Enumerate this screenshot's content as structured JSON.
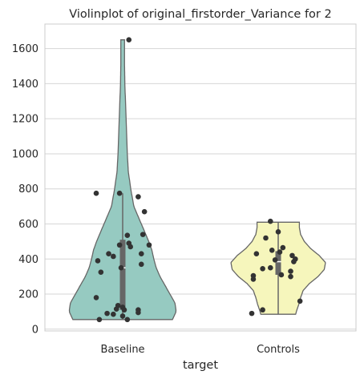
{
  "chart_data": {
    "type": "violin",
    "title": "Violinplot of original_firstorder_Variance for 2",
    "xlabel": "target",
    "ylabel": "",
    "ylim": [
      -10,
      1740
    ],
    "yticks": [
      0,
      200,
      400,
      600,
      800,
      1000,
      1200,
      1400,
      1600
    ],
    "grid": true,
    "categories": [
      "Baseline",
      "Controls"
    ],
    "colors": {
      "Baseline": "#96cac1",
      "Controls": "#f6f6bc",
      "outline": "#666666",
      "points": "#333333",
      "box": "#666666",
      "grid": "#d6d6d6"
    },
    "series": [
      {
        "category": "Baseline",
        "min": 55,
        "max": 1650,
        "q1": 110,
        "median": 350,
        "q3": 510,
        "density": [
          [
            55,
            0.8
          ],
          [
            100,
            0.86
          ],
          [
            150,
            0.84
          ],
          [
            200,
            0.76
          ],
          [
            250,
            0.68
          ],
          [
            300,
            0.6
          ],
          [
            350,
            0.54
          ],
          [
            400,
            0.5
          ],
          [
            450,
            0.47
          ],
          [
            500,
            0.42
          ],
          [
            550,
            0.36
          ],
          [
            600,
            0.3
          ],
          [
            650,
            0.24
          ],
          [
            700,
            0.18
          ],
          [
            800,
            0.13
          ],
          [
            900,
            0.09
          ],
          [
            1000,
            0.075
          ],
          [
            1100,
            0.065
          ],
          [
            1200,
            0.055
          ],
          [
            1300,
            0.045
          ],
          [
            1400,
            0.035
          ],
          [
            1500,
            0.03
          ],
          [
            1600,
            0.03
          ],
          [
            1650,
            0.03
          ]
        ],
        "points": [
          [
            0.04,
            1650
          ],
          [
            -0.17,
            775
          ],
          [
            -0.02,
            775
          ],
          [
            0.1,
            755
          ],
          [
            0.14,
            670
          ],
          [
            0.03,
            535
          ],
          [
            0.13,
            540
          ],
          [
            -0.02,
            480
          ],
          [
            0.04,
            490
          ],
          [
            0.17,
            480
          ],
          [
            0.05,
            470
          ],
          [
            -0.09,
            430
          ],
          [
            0.12,
            430
          ],
          [
            -0.06,
            415
          ],
          [
            -0.16,
            390
          ],
          [
            0.12,
            370
          ],
          [
            -0.01,
            350
          ],
          [
            -0.14,
            325
          ],
          [
            -0.17,
            180
          ],
          [
            -0.03,
            135
          ],
          [
            0.0,
            125
          ],
          [
            -0.04,
            115
          ],
          [
            0.01,
            110
          ],
          [
            0.1,
            110
          ],
          [
            -0.1,
            90
          ],
          [
            0.1,
            95
          ],
          [
            -0.06,
            85
          ],
          [
            0.0,
            75
          ],
          [
            -0.15,
            55
          ],
          [
            0.03,
            55
          ]
        ]
      },
      {
        "category": "Controls",
        "min": 85,
        "max": 610,
        "q1": 310,
        "median": 385,
        "q3": 445,
        "density": [
          [
            85,
            0.28
          ],
          [
            110,
            0.3
          ],
          [
            140,
            0.33
          ],
          [
            180,
            0.36
          ],
          [
            220,
            0.4
          ],
          [
            260,
            0.5
          ],
          [
            300,
            0.64
          ],
          [
            340,
            0.74
          ],
          [
            380,
            0.76
          ],
          [
            420,
            0.66
          ],
          [
            460,
            0.52
          ],
          [
            500,
            0.42
          ],
          [
            540,
            0.36
          ],
          [
            580,
            0.34
          ],
          [
            610,
            0.34
          ]
        ],
        "points": [
          [
            -0.05,
            615
          ],
          [
            0.0,
            555
          ],
          [
            -0.08,
            520
          ],
          [
            0.03,
            465
          ],
          [
            -0.04,
            450
          ],
          [
            0.01,
            440
          ],
          [
            -0.14,
            430
          ],
          [
            0.09,
            420
          ],
          [
            0.11,
            400
          ],
          [
            -0.02,
            395
          ],
          [
            0.1,
            385
          ],
          [
            -0.1,
            345
          ],
          [
            -0.05,
            350
          ],
          [
            0.08,
            330
          ],
          [
            -0.16,
            305
          ],
          [
            0.02,
            310
          ],
          [
            -0.16,
            285
          ],
          [
            0.08,
            300
          ],
          [
            0.14,
            160
          ],
          [
            -0.1,
            110
          ],
          [
            -0.17,
            90
          ]
        ]
      }
    ]
  }
}
